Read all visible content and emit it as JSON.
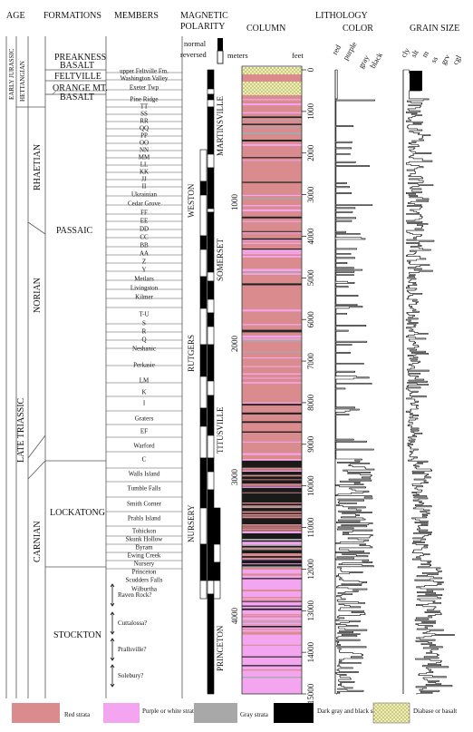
{
  "headers": {
    "age": "AGE",
    "formations": "FORMATIONS",
    "members": "MEMBERS",
    "magnetic_polarity_line1": "MAGNETIC",
    "magnetic_polarity_line2": "POLARITY",
    "column": "COLUMN",
    "lithology": "LITHOLOGY",
    "color": "COLOR",
    "grain_size": "GRAIN SIZE"
  },
  "polarity_key": {
    "normal": "normal",
    "reversed": "reversed"
  },
  "units": {
    "meters": "meters",
    "feet": "feet"
  },
  "ages": {
    "early_jurassic": "EARLY JURASSIC",
    "hettangian": "HETTANGIAN",
    "rhaetian": "RHAETIAN",
    "norian": "NORIAN",
    "late_triassic": "LATE TRIASSIC",
    "carnian": "CARNIAN"
  },
  "formations": {
    "preakness_1": "PREAKNESS",
    "preakness_2": "BASALT",
    "feltville": "FELTVILLE",
    "orange_1": "ORANGE MT.",
    "orange_2": "BASALT",
    "passaic": "PASSAIC",
    "lockatong": "LOCKATONG",
    "stockton": "STOCKTON"
  },
  "members": [
    "upper Feltville Fm.",
    "Washington Valley",
    "Exeter Twp",
    "Pine Ridge",
    "TT",
    "SS",
    "RR",
    "QQ",
    "PP",
    "OO",
    "NN",
    "MM",
    "LL",
    "KK",
    "JJ",
    "II",
    "Ukrainian",
    "Cedar Grove",
    "FF",
    "EE",
    "DD",
    "CC",
    "BB",
    "AA",
    "Z",
    "Y",
    "Metlars",
    "Livingston",
    "Kilmer",
    "T-U",
    "S",
    "R",
    "Q",
    "Neshanic",
    "Perkasie",
    "LM",
    "K",
    "I",
    "Graters",
    "EF",
    "Warford",
    "C",
    "Walls Island",
    "Tumble Falls",
    "Smith Corner",
    "Prahls Island",
    "Tohickon",
    "Skunk Hollow",
    "Byram",
    "Ewing Creek",
    "Nursery",
    "Princeton",
    "Scudders Falls",
    "Wilburtha",
    "Raven Rock?",
    "Cuttalossa?",
    "Prallsville?",
    "Solebury?"
  ],
  "magnetozones": {
    "martinsville": "MARTINSVILLE",
    "weston": "WESTON",
    "somerset": "SOMERSET",
    "rutgers": "RUTGERS",
    "titusville": "TITUSVILLE",
    "nursery": "NURSERY",
    "princeton": "PRINCETON"
  },
  "meter_ticks": [
    "1000",
    "2000",
    "3000",
    "4000"
  ],
  "feet_ticks": [
    "0",
    "1000",
    "2000",
    "3000",
    "4000",
    "5000",
    "6000",
    "7000",
    "8000",
    "9000",
    "10000",
    "11000",
    "12000",
    "13000",
    "14000",
    "15000"
  ],
  "color_axis": [
    "red",
    "purple",
    "gray",
    "black"
  ],
  "grain_axis": [
    "cly",
    "slt",
    "m",
    "ss",
    "grv",
    "cgl"
  ],
  "legend": {
    "red": "Red strata",
    "purple": "Purple or white strata",
    "gray": "Gray strata",
    "black": "Dark gray and black strata",
    "diabase": "Diabase or basalt"
  },
  "colors": {
    "red": "#d98b8e",
    "purple": "#f3a6ef",
    "gray": "#a8a8a8",
    "black": "#000000",
    "diabase": "#f1efae"
  }
}
